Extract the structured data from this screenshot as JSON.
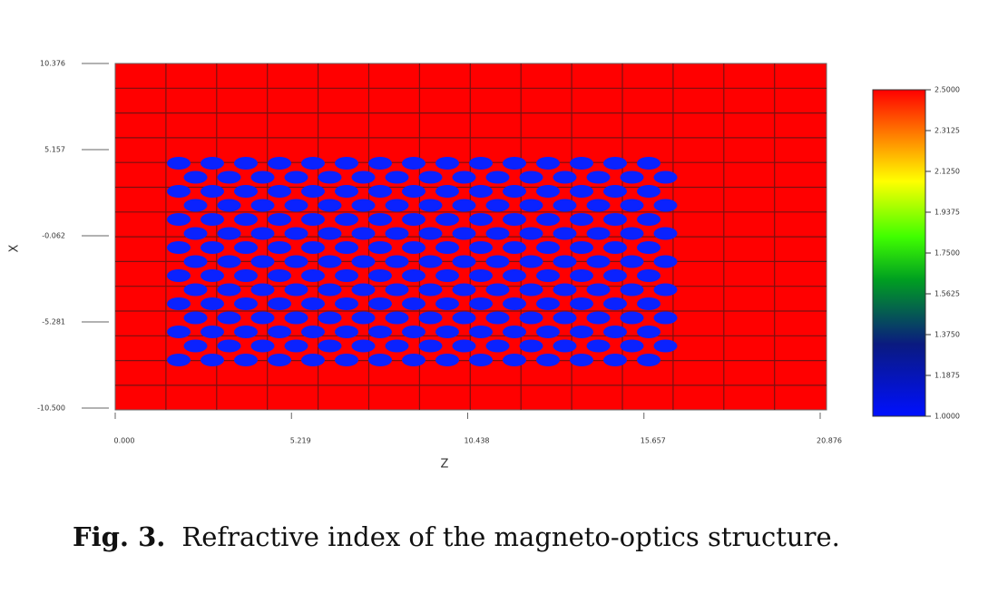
{
  "chart_data": {
    "type": "heatmap",
    "xlabel": "Z",
    "ylabel": "X",
    "xlim": [
      0,
      20.876
    ],
    "xticks": [
      {
        "value": 0,
        "label": "0.000"
      },
      5.219,
      10.438,
      15.657,
      20.876
    ],
    "ylim": [
      -10.5,
      10.376
    ],
    "yticks": [
      10.376,
      5.157,
      -0.062,
      -5.281,
      {
        "value": -10.5,
        "label": "-10.500"
      }
    ],
    "clim": [
      1,
      2.5
    ],
    "cticks": [
      {
        "value": 2.5,
        "label": "2.5000"
      },
      2.3125,
      {
        "value": 2.125,
        "label": "2.1250"
      },
      1.9375,
      {
        "value": 1.75,
        "label": "1.7500"
      },
      1.5625,
      {
        "value": 1.375,
        "label": "1.3750"
      },
      1.1875,
      {
        "value": 1,
        "label": "1.0000"
      }
    ]
  },
  "caption": {
    "label": "Fig. 3.",
    "text": "Refractive index of the magneto-optics structure."
  }
}
